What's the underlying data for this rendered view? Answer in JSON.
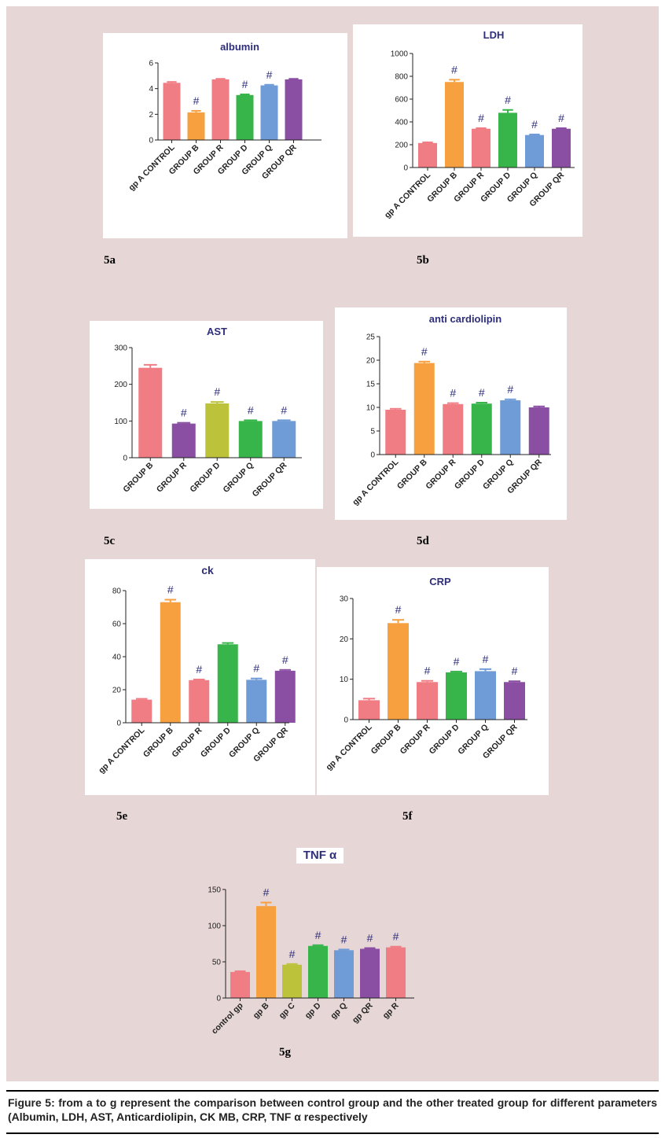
{
  "caption": "Figure 5: from a to g represent the comparison between control group and the other treated group for different parameters (Albumin, LDH, AST, Anticardiolipin, CK MB, CRP, TNF α respectively",
  "panel_labels": {
    "a": "5a",
    "b": "5b",
    "c": "5c",
    "d": "5d",
    "e": "5e",
    "f": "5f",
    "g": "5g"
  },
  "colors": {
    "pink": "#f07c84",
    "orange": "#f6a03f",
    "green": "#38b54a",
    "blue": "#6f9bd6",
    "purple": "#8a4fa2",
    "olive": "#bcc33a",
    "title": "#2e2e7a",
    "background": "#e7d6d6"
  },
  "chart_data": [
    {
      "id": "a",
      "type": "bar",
      "title": "albumin",
      "categories": [
        "gp A CONTROL",
        "GROUP B",
        "GROUP R",
        "GROUP D",
        "GROUP Q",
        "GROUP QR"
      ],
      "values": [
        4.45,
        2.15,
        4.72,
        3.5,
        4.25,
        4.72
      ],
      "errors": [
        0.07,
        0.12,
        0.04,
        0.05,
        0.05,
        0.04
      ],
      "significant": [
        false,
        true,
        false,
        true,
        true,
        false
      ],
      "bar_colors": [
        "#f07c84",
        "#f6a03f",
        "#f07c84",
        "#38b54a",
        "#6f9bd6",
        "#8a4fa2"
      ],
      "ylim": [
        0,
        6
      ],
      "yticks": [
        0,
        2,
        4,
        6
      ],
      "significance_marker": "#"
    },
    {
      "id": "b",
      "type": "bar",
      "title": "LDH",
      "categories": [
        "gp A CONTROL",
        "GROUP B",
        "GROUP R",
        "GROUP D",
        "GROUP Q",
        "GROUP QR"
      ],
      "values": [
        215,
        750,
        340,
        480,
        285,
        340
      ],
      "errors": [
        6,
        20,
        5,
        25,
        5,
        5
      ],
      "significant": [
        false,
        true,
        true,
        true,
        true,
        true
      ],
      "bar_colors": [
        "#f07c84",
        "#f6a03f",
        "#f07c84",
        "#38b54a",
        "#6f9bd6",
        "#8a4fa2"
      ],
      "ylim": [
        0,
        1000
      ],
      "yticks": [
        0,
        200,
        400,
        600,
        800,
        1000
      ],
      "significance_marker": "#"
    },
    {
      "id": "c",
      "type": "bar",
      "title": "AST",
      "categories": [
        "GROUP B",
        "GROUP R",
        "GROUP D",
        "GROUP Q",
        "GROUP QR"
      ],
      "values": [
        245,
        93,
        148,
        100,
        100
      ],
      "errors": [
        8,
        2,
        4,
        2,
        2
      ],
      "significant": [
        false,
        true,
        true,
        true,
        true
      ],
      "bar_colors": [
        "#f07c84",
        "#8a4fa2",
        "#bcc33a",
        "#38b54a",
        "#6f9bd6"
      ],
      "ylim": [
        0,
        300
      ],
      "yticks": [
        0,
        100,
        200,
        300
      ],
      "significance_marker": "#"
    },
    {
      "id": "d",
      "type": "bar",
      "title": "anti cardiolipin",
      "categories": [
        "gp A CONTROL",
        "GROUP B",
        "GROUP R",
        "GROUP D",
        "GROUP Q",
        "GROUP QR"
      ],
      "values": [
        9.5,
        19.4,
        10.7,
        10.8,
        11.5,
        10.0
      ],
      "errors": [
        0.2,
        0.3,
        0.2,
        0.2,
        0.2,
        0.2
      ],
      "significant": [
        false,
        true,
        true,
        true,
        true,
        false
      ],
      "bar_colors": [
        "#f07c84",
        "#f6a03f",
        "#f07c84",
        "#38b54a",
        "#6f9bd6",
        "#8a4fa2"
      ],
      "ylim": [
        0,
        25
      ],
      "yticks": [
        0,
        5,
        10,
        15,
        20,
        25
      ],
      "significance_marker": "#"
    },
    {
      "id": "e",
      "type": "bar",
      "title": "ck",
      "categories": [
        "gp A CONTROL",
        "GROUP B",
        "GROUP R",
        "GROUP D",
        "GROUP Q",
        "GROUP QR"
      ],
      "values": [
        14,
        73,
        25.8,
        47.5,
        26,
        31.5
      ],
      "errors": [
        0.5,
        1.5,
        0.4,
        0.8,
        0.8,
        0.5
      ],
      "significant": [
        false,
        true,
        true,
        false,
        true,
        true
      ],
      "bar_colors": [
        "#f07c84",
        "#f6a03f",
        "#f07c84",
        "#38b54a",
        "#6f9bd6",
        "#8a4fa2"
      ],
      "ylim": [
        0,
        80
      ],
      "yticks": [
        0,
        20,
        40,
        60,
        80
      ],
      "significance_marker": "#"
    },
    {
      "id": "f",
      "type": "bar",
      "title": "CRP",
      "categories": [
        "gp A CONTROL",
        "GROUP B",
        "GROUP R",
        "GROUP D",
        "GROUP Q",
        "GROUP QR"
      ],
      "values": [
        4.8,
        23.9,
        9.3,
        11.7,
        12,
        9.3
      ],
      "errors": [
        0.4,
        0.8,
        0.3,
        0.2,
        0.5,
        0.2
      ],
      "significant": [
        false,
        true,
        true,
        true,
        true,
        true
      ],
      "bar_colors": [
        "#f07c84",
        "#f6a03f",
        "#f07c84",
        "#38b54a",
        "#6f9bd6",
        "#8a4fa2"
      ],
      "ylim": [
        0,
        30
      ],
      "yticks": [
        0,
        10,
        20,
        30
      ],
      "significance_marker": "#"
    },
    {
      "id": "g",
      "type": "bar",
      "title": "TNF α",
      "categories": [
        "control gp",
        "gp B",
        "gp C",
        "gp D",
        "gp Q",
        "gp QR",
        "gp R"
      ],
      "values": [
        36,
        127,
        46,
        72,
        66,
        68,
        70
      ],
      "errors": [
        1,
        5,
        1,
        1,
        1,
        1,
        1
      ],
      "significant": [
        false,
        true,
        true,
        true,
        true,
        true,
        true
      ],
      "bar_colors": [
        "#f07c84",
        "#f6a03f",
        "#bcc33a",
        "#38b54a",
        "#6f9bd6",
        "#8a4fa2",
        "#f07c84"
      ],
      "ylim": [
        0,
        150
      ],
      "yticks": [
        0,
        50,
        100,
        150
      ],
      "significance_marker": "#"
    }
  ]
}
